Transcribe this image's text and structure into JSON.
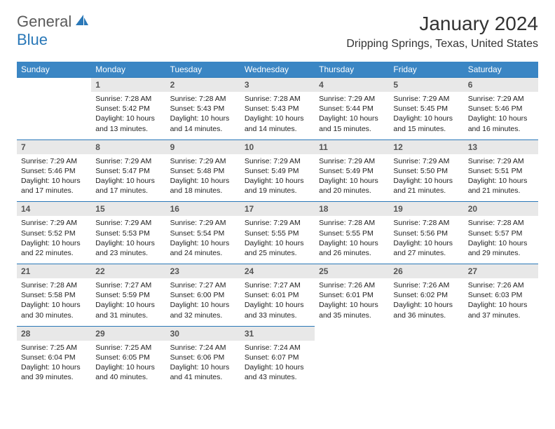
{
  "logo": {
    "text_general": "General",
    "text_blue": "Blue"
  },
  "header": {
    "month_title": "January 2024",
    "location": "Dripping Springs, Texas, United States"
  },
  "colors": {
    "header_bg": "#3b86c4",
    "header_text": "#ffffff",
    "daynum_bg": "#e8e8e8",
    "daynum_text": "#555555",
    "rule": "#2a78b8",
    "body_text": "#222222",
    "logo_gray": "#5a5a5a",
    "logo_blue": "#2a78b8"
  },
  "day_headers": [
    "Sunday",
    "Monday",
    "Tuesday",
    "Wednesday",
    "Thursday",
    "Friday",
    "Saturday"
  ],
  "weeks": [
    [
      null,
      {
        "n": "1",
        "sr": "7:28 AM",
        "ss": "5:42 PM",
        "dl": "10 hours and 13 minutes."
      },
      {
        "n": "2",
        "sr": "7:28 AM",
        "ss": "5:43 PM",
        "dl": "10 hours and 14 minutes."
      },
      {
        "n": "3",
        "sr": "7:28 AM",
        "ss": "5:43 PM",
        "dl": "10 hours and 14 minutes."
      },
      {
        "n": "4",
        "sr": "7:29 AM",
        "ss": "5:44 PM",
        "dl": "10 hours and 15 minutes."
      },
      {
        "n": "5",
        "sr": "7:29 AM",
        "ss": "5:45 PM",
        "dl": "10 hours and 15 minutes."
      },
      {
        "n": "6",
        "sr": "7:29 AM",
        "ss": "5:46 PM",
        "dl": "10 hours and 16 minutes."
      }
    ],
    [
      {
        "n": "7",
        "sr": "7:29 AM",
        "ss": "5:46 PM",
        "dl": "10 hours and 17 minutes."
      },
      {
        "n": "8",
        "sr": "7:29 AM",
        "ss": "5:47 PM",
        "dl": "10 hours and 17 minutes."
      },
      {
        "n": "9",
        "sr": "7:29 AM",
        "ss": "5:48 PM",
        "dl": "10 hours and 18 minutes."
      },
      {
        "n": "10",
        "sr": "7:29 AM",
        "ss": "5:49 PM",
        "dl": "10 hours and 19 minutes."
      },
      {
        "n": "11",
        "sr": "7:29 AM",
        "ss": "5:49 PM",
        "dl": "10 hours and 20 minutes."
      },
      {
        "n": "12",
        "sr": "7:29 AM",
        "ss": "5:50 PM",
        "dl": "10 hours and 21 minutes."
      },
      {
        "n": "13",
        "sr": "7:29 AM",
        "ss": "5:51 PM",
        "dl": "10 hours and 21 minutes."
      }
    ],
    [
      {
        "n": "14",
        "sr": "7:29 AM",
        "ss": "5:52 PM",
        "dl": "10 hours and 22 minutes."
      },
      {
        "n": "15",
        "sr": "7:29 AM",
        "ss": "5:53 PM",
        "dl": "10 hours and 23 minutes."
      },
      {
        "n": "16",
        "sr": "7:29 AM",
        "ss": "5:54 PM",
        "dl": "10 hours and 24 minutes."
      },
      {
        "n": "17",
        "sr": "7:29 AM",
        "ss": "5:55 PM",
        "dl": "10 hours and 25 minutes."
      },
      {
        "n": "18",
        "sr": "7:28 AM",
        "ss": "5:55 PM",
        "dl": "10 hours and 26 minutes."
      },
      {
        "n": "19",
        "sr": "7:28 AM",
        "ss": "5:56 PM",
        "dl": "10 hours and 27 minutes."
      },
      {
        "n": "20",
        "sr": "7:28 AM",
        "ss": "5:57 PM",
        "dl": "10 hours and 29 minutes."
      }
    ],
    [
      {
        "n": "21",
        "sr": "7:28 AM",
        "ss": "5:58 PM",
        "dl": "10 hours and 30 minutes."
      },
      {
        "n": "22",
        "sr": "7:27 AM",
        "ss": "5:59 PM",
        "dl": "10 hours and 31 minutes."
      },
      {
        "n": "23",
        "sr": "7:27 AM",
        "ss": "6:00 PM",
        "dl": "10 hours and 32 minutes."
      },
      {
        "n": "24",
        "sr": "7:27 AM",
        "ss": "6:01 PM",
        "dl": "10 hours and 33 minutes."
      },
      {
        "n": "25",
        "sr": "7:26 AM",
        "ss": "6:01 PM",
        "dl": "10 hours and 35 minutes."
      },
      {
        "n": "26",
        "sr": "7:26 AM",
        "ss": "6:02 PM",
        "dl": "10 hours and 36 minutes."
      },
      {
        "n": "27",
        "sr": "7:26 AM",
        "ss": "6:03 PM",
        "dl": "10 hours and 37 minutes."
      }
    ],
    [
      {
        "n": "28",
        "sr": "7:25 AM",
        "ss": "6:04 PM",
        "dl": "10 hours and 39 minutes."
      },
      {
        "n": "29",
        "sr": "7:25 AM",
        "ss": "6:05 PM",
        "dl": "10 hours and 40 minutes."
      },
      {
        "n": "30",
        "sr": "7:24 AM",
        "ss": "6:06 PM",
        "dl": "10 hours and 41 minutes."
      },
      {
        "n": "31",
        "sr": "7:24 AM",
        "ss": "6:07 PM",
        "dl": "10 hours and 43 minutes."
      },
      null,
      null,
      null
    ]
  ],
  "labels": {
    "sunrise": "Sunrise:",
    "sunset": "Sunset:",
    "daylight": "Daylight:"
  }
}
